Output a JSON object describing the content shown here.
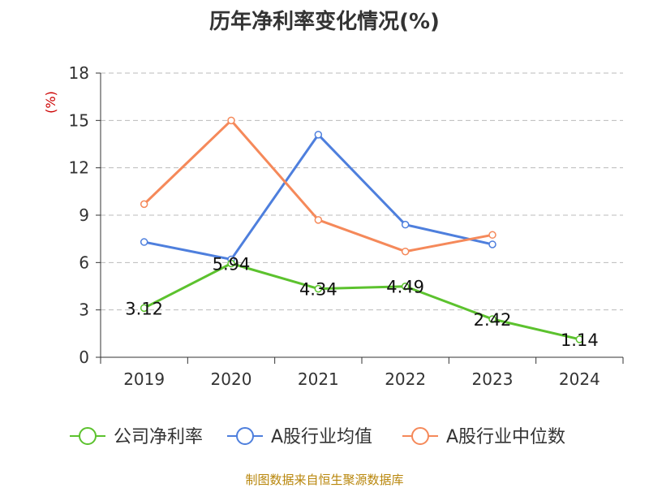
{
  "page": {
    "title": "历年净利率变化情况(%)",
    "source": "制图数据来自恒生聚源数据库"
  },
  "chart_data": {
    "type": "line",
    "title": "历年净利率变化情况(%)",
    "ylabel": "(%)",
    "xlabel": "",
    "categories": [
      "2019",
      "2020",
      "2021",
      "2022",
      "2023",
      "2024"
    ],
    "ylim": [
      0,
      18
    ],
    "yticks": [
      "0",
      "3",
      "6",
      "9",
      "12",
      "15",
      "18"
    ],
    "grid": true,
    "legend_position": "bottom",
    "series": [
      {
        "name": "公司净利率",
        "color": "#5cc22e",
        "show_labels": true,
        "values": [
          3.12,
          5.94,
          4.34,
          4.49,
          2.42,
          1.14
        ],
        "labels": [
          "3.12",
          "5.94",
          "4.34",
          "4.49",
          "2.42",
          "1.14"
        ]
      },
      {
        "name": "A股行业均值",
        "color": "#4e7fdd",
        "show_labels": false,
        "values": [
          7.3,
          6.2,
          14.1,
          8.4,
          7.15,
          null
        ]
      },
      {
        "name": "A股行业中位数",
        "color": "#f5895a",
        "show_labels": false,
        "values": [
          9.7,
          15.0,
          8.7,
          6.7,
          7.75,
          null
        ]
      }
    ]
  }
}
